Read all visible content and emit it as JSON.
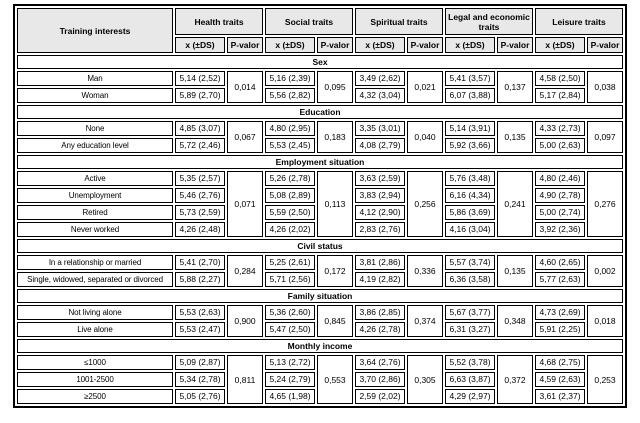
{
  "table": {
    "row_label_header": "Training interests",
    "col_groups": [
      {
        "label": "Health traits"
      },
      {
        "label": "Social traits"
      },
      {
        "label": "Spiritual traits"
      },
      {
        "label": "Legal and economic traits"
      },
      {
        "label": "Leisure traits"
      }
    ],
    "subheaders": {
      "mean": "x (±DS)",
      "p": "P-valor"
    },
    "sections": [
      {
        "title": "Sex",
        "rows": [
          {
            "label": "Man",
            "values": [
              "5,14 (2,52)",
              "5,16 (2,39)",
              "3,49 (2,62)",
              "5,41 (3,57)",
              "4,58 (2,50)"
            ]
          },
          {
            "label": "Woman",
            "values": [
              "5,89 (2,70)",
              "5,56 (2,82)",
              "4,32 (3,04)",
              "6,07 (3,88)",
              "5,17 (2,84)"
            ]
          }
        ],
        "p_values": [
          "0,014",
          "0,095",
          "0,021",
          "0,137",
          "0,038"
        ]
      },
      {
        "title": "Education",
        "rows": [
          {
            "label": "None",
            "values": [
              "4,85 (3,07)",
              "4,80 (2,95)",
              "3,35 (3,01)",
              "5,14 (3,91)",
              "4,33 (2,73)"
            ]
          },
          {
            "label": "Any education level",
            "values": [
              "5,72 (2,46)",
              "5,53 (2,45)",
              "4,08 (2,79)",
              "5,92 (3,66)",
              "5,00 (2,63)"
            ]
          }
        ],
        "p_values": [
          "0,067",
          "0,183",
          "0,040",
          "0,135",
          "0,097"
        ]
      },
      {
        "title": "Employment situation",
        "rows": [
          {
            "label": "Active",
            "values": [
              "5,35 (2,57)",
              "5,26 (2,78)",
              "3,63 (2,59)",
              "5,76 (3,48)",
              "4,80 (2,46)"
            ]
          },
          {
            "label": "Unemployment",
            "values": [
              "5,46 (2,76)",
              "5,08 (2,89)",
              "3,83 (2,94)",
              "6,16 (4,34)",
              "4,90 (2,78)"
            ]
          },
          {
            "label": "Retired",
            "values": [
              "5,73 (2,59)",
              "5,59 (2,50)",
              "4,12 (2,90)",
              "5,86 (3,69)",
              "5,00 (2,74)"
            ]
          },
          {
            "label": "Never worked",
            "values": [
              "4,26 (2,48)",
              "4,26 (2,02)",
              "2,83 (2,76)",
              "4,16 (3,04)",
              "3,92 (2,36)"
            ]
          }
        ],
        "p_values": [
          "0,071",
          "0,113",
          "0,256",
          "0,241",
          "0,276"
        ]
      },
      {
        "title": "Civil status",
        "rows": [
          {
            "label": "In a relationship or married",
            "values": [
              "5,41 (2,70)",
              "5,25 (2,61)",
              "3,81 (2,86)",
              "5,57 (3,74)",
              "4,60 (2,65)"
            ]
          },
          {
            "label": "Single, widowed, separated or divorced",
            "values": [
              "5,88 (2,27)",
              "5,71 (2,56)",
              "4,19 (2,82)",
              "6,36 (3,58)",
              "5,77 (2,63)"
            ]
          }
        ],
        "p_values": [
          "0,284",
          "0,172",
          "0,336",
          "0,135",
          "0,002"
        ]
      },
      {
        "title": "Family situation",
        "rows": [
          {
            "label": "Not living alone",
            "values": [
              "5,53 (2,63)",
              "5,36 (2,60)",
              "3,86 (2,85)",
              "5,67 (3,77)",
              "4,73 (2,69)"
            ]
          },
          {
            "label": "Live alone",
            "values": [
              "5,53 (2,47)",
              "5,47 (2,50)",
              "4,26 (2,78)",
              "6,31 (3,27)",
              "5,91 (2,25)"
            ]
          }
        ],
        "p_values": [
          "0,900",
          "0,845",
          "0,374",
          "0,348",
          "0,018"
        ]
      },
      {
        "title": "Monthly income",
        "rows": [
          {
            "label": "≤1000",
            "values": [
              "5,09 (2,87)",
              "5,13 (2,72)",
              "3,64 (2,76)",
              "5,52 (3,78)",
              "4,68 (2,75)"
            ]
          },
          {
            "label": "1001-2500",
            "values": [
              "5,34 (2,78)",
              "5,24 (2,79)",
              "3,70 (2,86)",
              "6,63 (3,87)",
              "4,59 (2,63)"
            ]
          },
          {
            "label": "≥2500",
            "values": [
              "5,05 (2,76)",
              "4,65 (1,98)",
              "2,59 (2,02)",
              "4,29 (2,97)",
              "3,61 (2,37)"
            ]
          }
        ],
        "p_values": [
          "0,811",
          "0,553",
          "0,305",
          "0,372",
          "0,253"
        ]
      }
    ],
    "colors": {
      "header_bg": "#e8e8e8",
      "border": "#000000",
      "text": "#000000",
      "body_bg": "#ffffff"
    }
  }
}
